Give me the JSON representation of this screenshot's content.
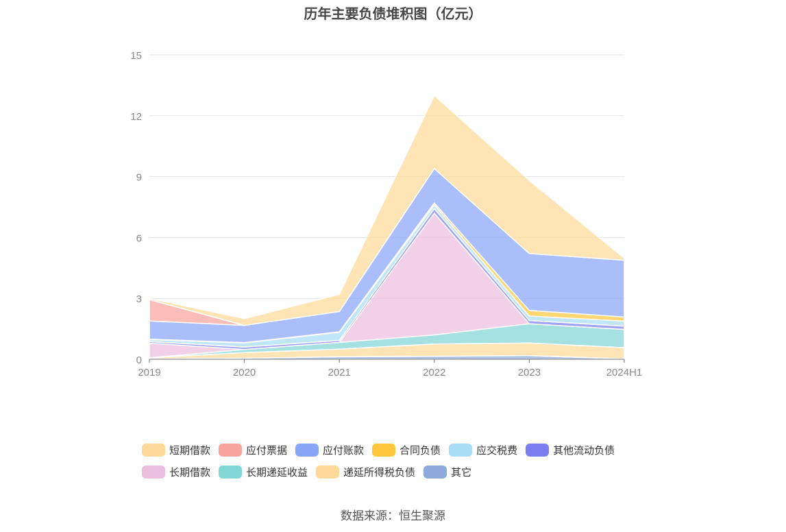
{
  "chart_data": {
    "type": "area",
    "title": "历年主要负债堆积图（亿元）",
    "stacked": true,
    "categories": [
      "2019",
      "2020",
      "2021",
      "2022",
      "2023",
      "2024H1"
    ],
    "ylim": [
      0,
      15
    ],
    "yticks": [
      0,
      3,
      6,
      9,
      12,
      15
    ],
    "grid": true,
    "legend_position": "bottom",
    "series": [
      {
        "name": "其它",
        "color": "#8eaadb",
        "values": [
          0.02,
          0.05,
          0.12,
          0.15,
          0.18,
          0.02
        ]
      },
      {
        "name": "递延所得税负债",
        "color": "#ffd99a",
        "values": [
          0.05,
          0.28,
          0.38,
          0.6,
          0.62,
          0.55
        ]
      },
      {
        "name": "长期递延收益",
        "color": "#82d6d6",
        "values": [
          0.0,
          0.15,
          0.33,
          0.45,
          0.95,
          0.9
        ]
      },
      {
        "name": "长期借款",
        "color": "#ebbedf",
        "values": [
          0.72,
          0.0,
          0.0,
          6.0,
          0.0,
          0.0
        ]
      },
      {
        "name": "其他流动负债",
        "color": "#7b7ff0",
        "values": [
          0.08,
          0.12,
          0.1,
          0.22,
          0.16,
          0.16
        ]
      },
      {
        "name": "应交税费",
        "color": "#a8dcf7",
        "values": [
          0.1,
          0.2,
          0.4,
          0.18,
          0.22,
          0.25
        ]
      },
      {
        "name": "合同负债",
        "color": "#ffc83c",
        "values": [
          0.02,
          0.02,
          0.02,
          0.1,
          0.28,
          0.2
        ]
      },
      {
        "name": "应付账款",
        "color": "#88a5f8",
        "values": [
          0.9,
          0.85,
          1.0,
          1.7,
          2.8,
          2.8
        ]
      },
      {
        "name": "应付票据",
        "color": "#f9a39d",
        "values": [
          1.05,
          0.0,
          0.0,
          0.0,
          0.0,
          0.0
        ]
      },
      {
        "name": "短期借款",
        "color": "#ffd99a",
        "values": [
          0.06,
          0.33,
          0.85,
          3.6,
          3.6,
          0.1
        ]
      }
    ]
  },
  "legend": {
    "row1": [
      {
        "label": "短期借款",
        "color": "#ffd99a"
      },
      {
        "label": "应付票据",
        "color": "#f9a39d"
      },
      {
        "label": "应付账款",
        "color": "#88a5f8"
      },
      {
        "label": "合同负债",
        "color": "#ffc83c"
      },
      {
        "label": "应交税费",
        "color": "#a8dcf7"
      },
      {
        "label": "其他流动负债",
        "color": "#7b7ff0"
      }
    ],
    "row2": [
      {
        "label": "长期借款",
        "color": "#ebbedf"
      },
      {
        "label": "长期递延收益",
        "color": "#82d6d6"
      },
      {
        "label": "递延所得税负债",
        "color": "#ffd99a"
      },
      {
        "label": "其它",
        "color": "#8eaadb"
      }
    ]
  },
  "source": "数据来源：恒生聚源"
}
